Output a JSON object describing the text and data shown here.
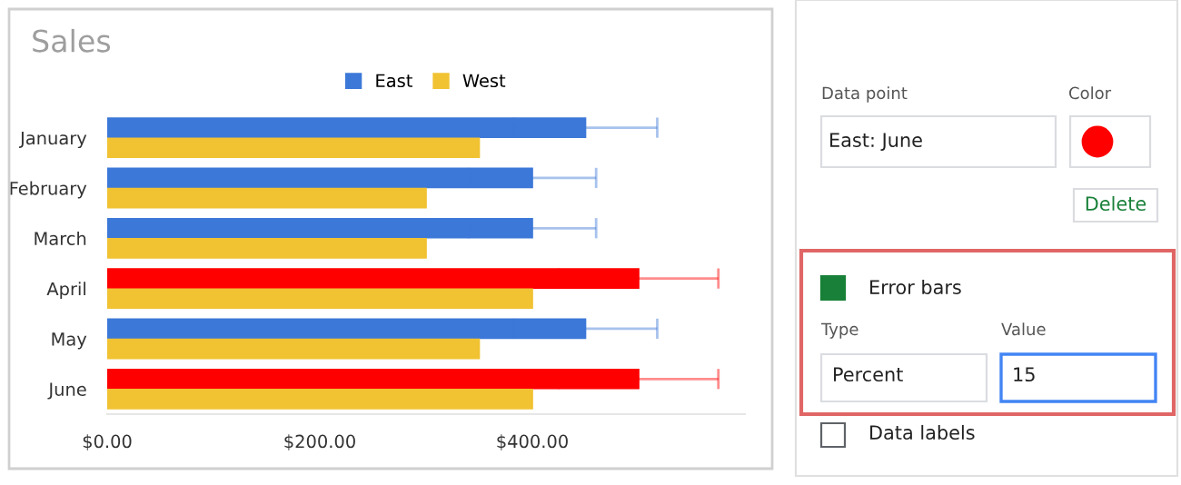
{
  "chart_data": [
    {
      "type": "bar",
      "orientation": "horizontal",
      "title": "Sales",
      "categories": [
        "January",
        "February",
        "March",
        "April",
        "May",
        "June"
      ],
      "series": [
        {
          "name": "East",
          "color": "#3c78d8",
          "colors": [
            "#3c78d8",
            "#3c78d8",
            "#3c78d8",
            "#ff0000",
            "#3c78d8",
            "#ff0000"
          ],
          "values": [
            450,
            400,
            400,
            500,
            450,
            500
          ],
          "errors": [
            67.5,
            60,
            60,
            75,
            67.5,
            75
          ]
        },
        {
          "name": "West",
          "color": "#f1c232",
          "values": [
            350,
            300,
            300,
            400,
            350,
            400
          ]
        }
      ],
      "xlim": [
        0,
        600
      ],
      "xticks": [
        {
          "value": 0,
          "label": "$0.00"
        },
        {
          "value": 200,
          "label": "$200.00"
        },
        {
          "value": 400,
          "label": "$400.00"
        }
      ],
      "legend": "top",
      "grid": false
    },
    {
      "type": "other",
      "annotations": [
        "Data point",
        "Color",
        "East: June",
        "Delete",
        "Error bars",
        "Type",
        "Value",
        "Percent",
        "15",
        "Data labels"
      ]
    }
  ]
}
